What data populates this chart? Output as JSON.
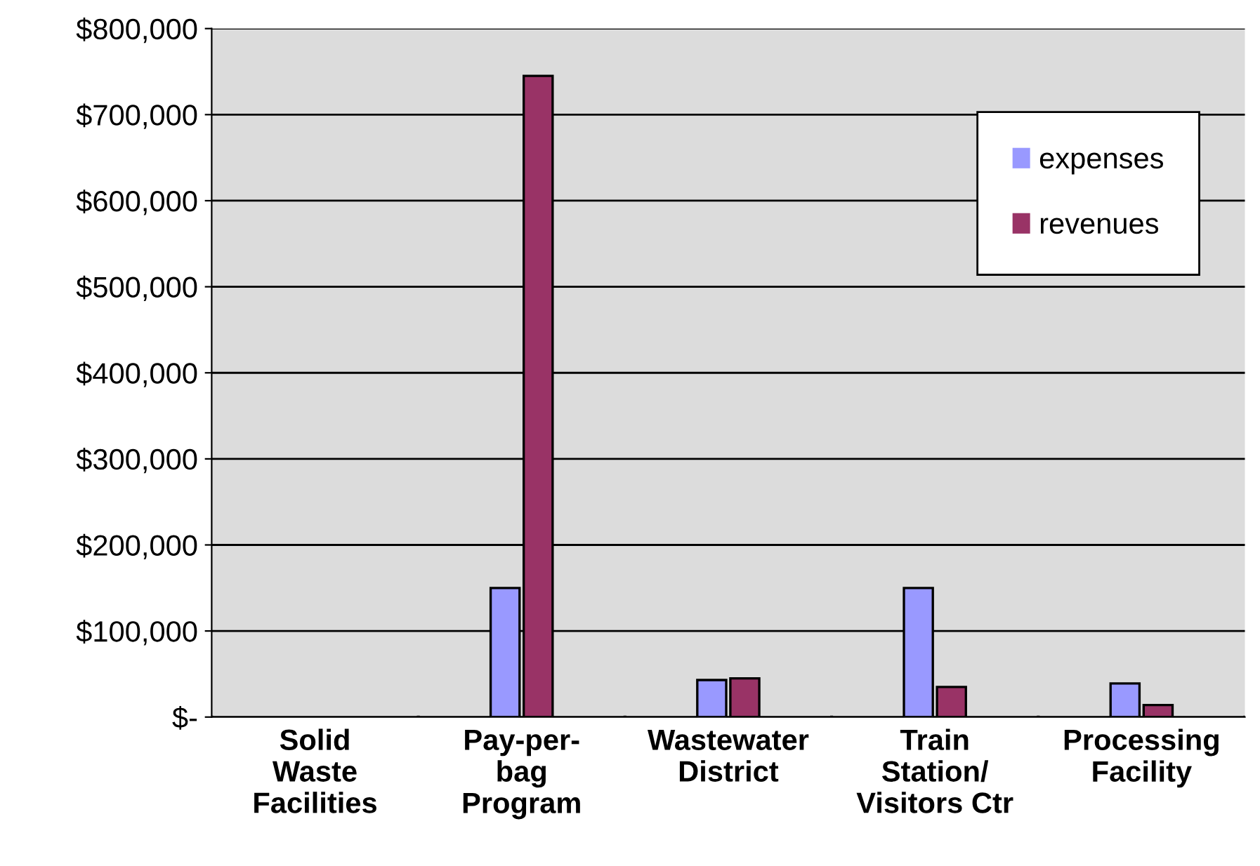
{
  "chart_data": {
    "type": "bar",
    "categories": [
      "Solid\nWaste\nFacilities",
      "Pay-per-\nbag\nProgram",
      "Wastewater\nDistrict",
      "Train\nStation/\nVisitors Ctr",
      "Processing\nFacility"
    ],
    "series": [
      {
        "name": "expenses",
        "color": "#9999ff",
        "values": [
          0,
          150000,
          43000,
          150000,
          39000
        ]
      },
      {
        "name": "revenues",
        "color": "#993366",
        "values": [
          0,
          745000,
          45000,
          35000,
          14000
        ]
      }
    ],
    "ylim": [
      0,
      800000
    ],
    "yticks": [
      {
        "value": 0,
        "label": "$-"
      },
      {
        "value": 100000,
        "label": "$100,000"
      },
      {
        "value": 200000,
        "label": "$200,000"
      },
      {
        "value": 300000,
        "label": "$300,000"
      },
      {
        "value": 400000,
        "label": "$400,000"
      },
      {
        "value": 500000,
        "label": "$500,000"
      },
      {
        "value": 600000,
        "label": "$600,000"
      },
      {
        "value": 700000,
        "label": "$700,000"
      },
      {
        "value": 800000,
        "label": "$800,000"
      }
    ],
    "grid": "y",
    "legend": "top right"
  }
}
